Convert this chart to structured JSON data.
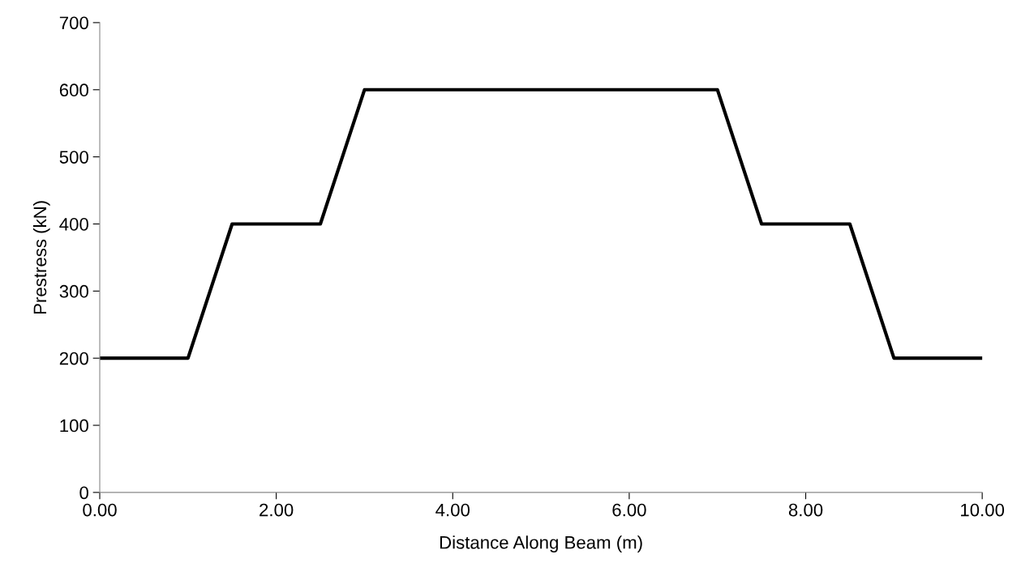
{
  "chart_data": {
    "type": "line",
    "xlabel": "Distance Along Beam (m)",
    "ylabel": "Prestress (kN)",
    "x": [
      0,
      1,
      1.5,
      2.5,
      3,
      7,
      7.5,
      8.5,
      9,
      10
    ],
    "series": [
      {
        "color": "#000000",
        "values": [
          200,
          200,
          400,
          400,
          600,
          600,
          400,
          400,
          200,
          200
        ]
      }
    ],
    "xlim": [
      0,
      10
    ],
    "ylim": [
      0,
      700
    ],
    "xticks": [
      {
        "value": 0,
        "label": "0.00"
      },
      {
        "value": 2,
        "label": "2.00"
      },
      {
        "value": 4,
        "label": "4.00"
      },
      {
        "value": 6,
        "label": "6.00"
      },
      {
        "value": 8,
        "label": "8.00"
      },
      {
        "value": 10,
        "label": "10.00"
      }
    ],
    "yticks": [
      0,
      100,
      200,
      300,
      400,
      500,
      600,
      700
    ],
    "grid": false,
    "legend": false,
    "marker": "none",
    "line_style": "solid"
  }
}
